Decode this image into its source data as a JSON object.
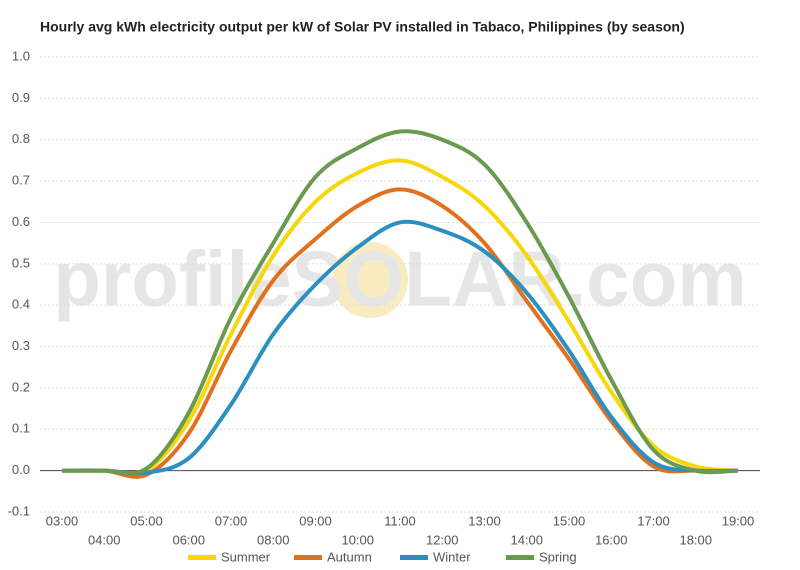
{
  "chart_data": {
    "type": "line",
    "title": "Hourly avg kWh electricity output per kW of Solar PV installed in Tabaco, Philippines (by season)",
    "watermark": "profileSOLAR.com",
    "categories": [
      "03:00",
      "04:00",
      "05:00",
      "06:00",
      "07:00",
      "08:00",
      "09:00",
      "10:00",
      "11:00",
      "12:00",
      "13:00",
      "14:00",
      "15:00",
      "16:00",
      "17:00",
      "18:00",
      "19:00"
    ],
    "series": [
      {
        "name": "Summer",
        "color": "#f7d708",
        "values": [
          0,
          0,
          0,
          0.12,
          0.33,
          0.52,
          0.65,
          0.72,
          0.75,
          0.71,
          0.64,
          0.52,
          0.36,
          0.19,
          0.06,
          0.01,
          0
        ]
      },
      {
        "name": "Autumn",
        "color": "#e2711d",
        "values": [
          0,
          0,
          -0.01,
          0.09,
          0.29,
          0.46,
          0.56,
          0.64,
          0.68,
          0.64,
          0.55,
          0.41,
          0.27,
          0.12,
          0.01,
          0,
          0
        ]
      },
      {
        "name": "Winter",
        "color": "#2a8fc1",
        "values": [
          0,
          0,
          -0.005,
          0.03,
          0.16,
          0.33,
          0.45,
          0.54,
          0.6,
          0.58,
          0.53,
          0.43,
          0.29,
          0.13,
          0.02,
          0,
          0
        ]
      },
      {
        "name": "Spring",
        "color": "#6a9a4f",
        "values": [
          0,
          0,
          0.005,
          0.14,
          0.37,
          0.55,
          0.71,
          0.78,
          0.82,
          0.8,
          0.74,
          0.6,
          0.42,
          0.22,
          0.05,
          0,
          0
        ]
      }
    ],
    "ylim": [
      -0.1,
      1.0
    ],
    "yticks": [
      {
        "value": -0.1,
        "label": "-0.1"
      },
      {
        "value": 0,
        "label": "0.0"
      },
      0.1,
      0.2,
      0.3,
      0.4,
      0.5,
      0.6,
      0.7,
      0.8,
      0.9,
      {
        "value": 1,
        "label": "1.0"
      }
    ],
    "grid": true,
    "legend": "bottom"
  }
}
